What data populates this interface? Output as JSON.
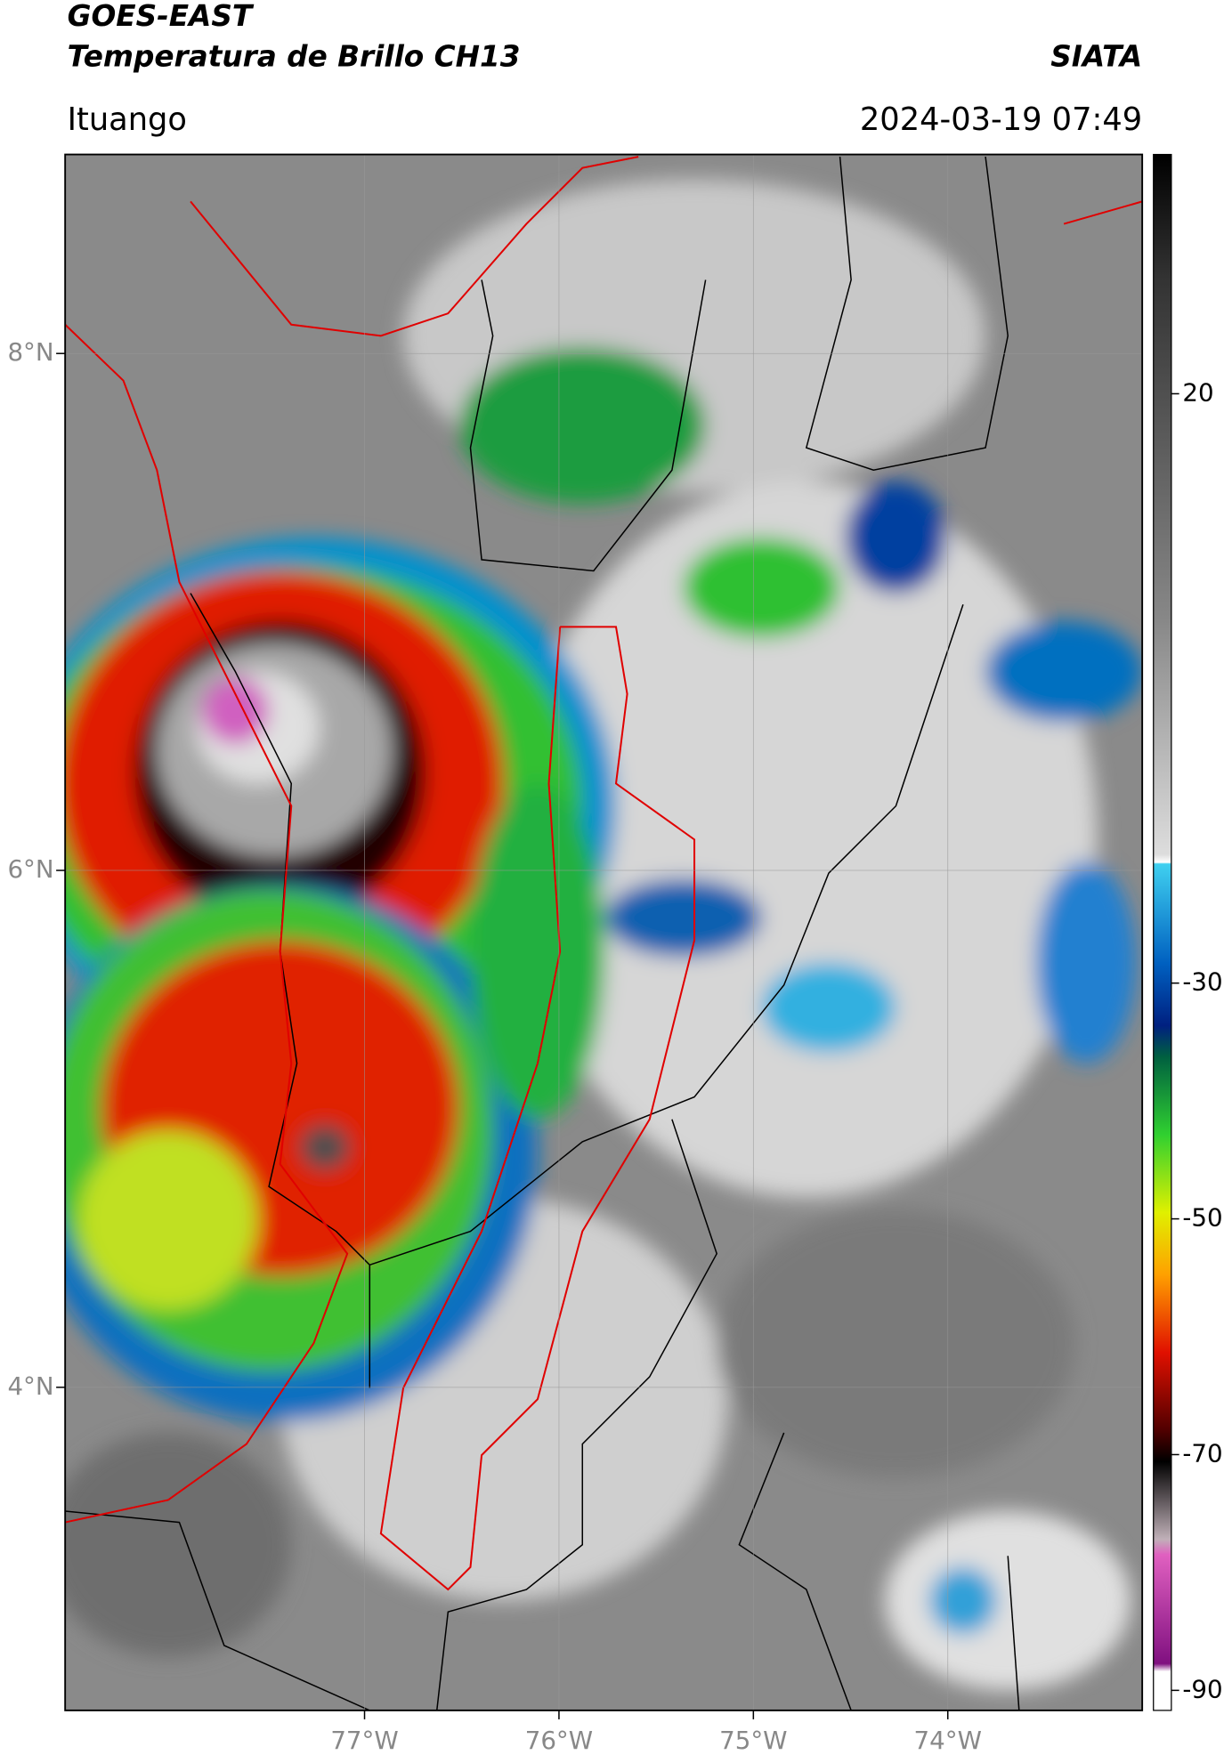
{
  "map": {
    "title": "GOES-EAST",
    "subtitle": "Temperatura de Brillo CH13",
    "source": "SIATA",
    "location": "Ituango",
    "timestamp": "2024-03-19 07:49",
    "lon_range": [
      -78.54,
      -73.0
    ],
    "lat_range": [
      2.75,
      8.77
    ],
    "lon_ticks": [
      {
        "value": -77,
        "label": "77°W"
      },
      {
        "value": -76,
        "label": "76°W"
      },
      {
        "value": -75,
        "label": "75°W"
      },
      {
        "value": -74,
        "label": "74°W"
      }
    ],
    "lat_ticks": [
      {
        "value": 8,
        "label": "8°N"
      },
      {
        "value": 6,
        "label": "6°N"
      },
      {
        "value": 4,
        "label": "4°N"
      }
    ],
    "colorbar": {
      "range": [
        -91.7,
        40.3
      ],
      "ticks": [
        20,
        -30,
        -50,
        -70,
        -90
      ]
    }
  }
}
